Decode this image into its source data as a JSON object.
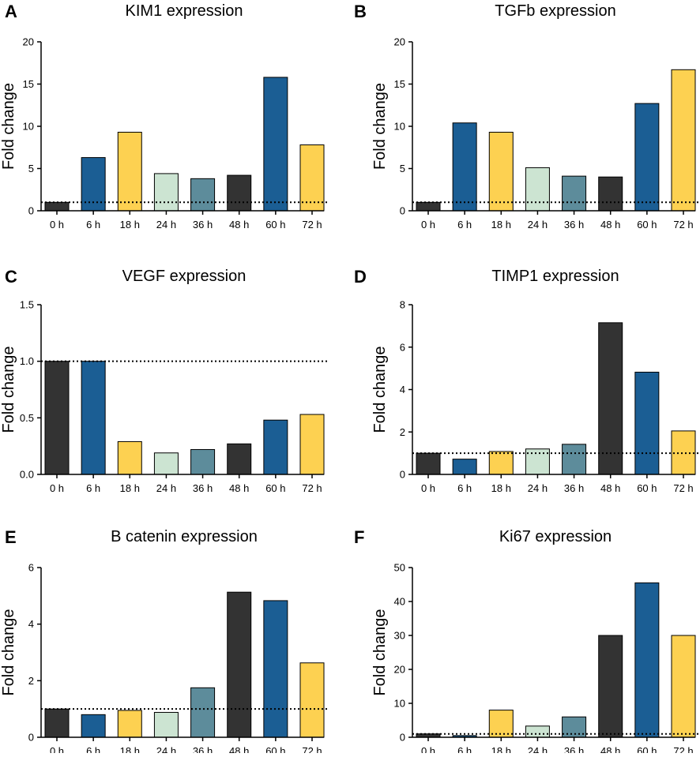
{
  "figure": {
    "default_ylabel": "Fold  change",
    "reference_line_value": 1,
    "colors": {
      "black": "#333333",
      "blue": "#1b5e94",
      "yellow": "#fdd151",
      "mint": "#cce4d2",
      "steel": "#5d8c9b"
    },
    "bar_colors": [
      "#333333",
      "#1b5e94",
      "#fdd151",
      "#cce4d2",
      "#5d8c9b",
      "#333333",
      "#1b5e94",
      "#fdd151"
    ]
  },
  "chart_data": [
    {
      "panel": "A",
      "type": "bar",
      "title": "KIM1 expression",
      "xlabel": "",
      "ylabel": "Fold  change",
      "categories": [
        "0 h",
        "6 h",
        "18 h",
        "24 h",
        "36 h",
        "48 h",
        "60 h",
        "72 h"
      ],
      "values": [
        1.0,
        6.3,
        9.3,
        4.4,
        3.8,
        4.2,
        15.8,
        7.8
      ],
      "ylim": [
        0,
        20
      ],
      "yticks": [
        0,
        5,
        10,
        15,
        20
      ],
      "ytick_labels": [
        "0",
        "5",
        "10",
        "15",
        "20"
      ],
      "reference_line": 1
    },
    {
      "panel": "B",
      "type": "bar",
      "title": "TGFb expression",
      "xlabel": "",
      "ylabel": "Fold  change",
      "categories": [
        "0 h",
        "6 h",
        "18 h",
        "24 h",
        "36 h",
        "48 h",
        "60 h",
        "72 h"
      ],
      "values": [
        1.0,
        10.4,
        9.3,
        5.1,
        4.1,
        4.0,
        12.7,
        16.7
      ],
      "ylim": [
        0,
        20
      ],
      "yticks": [
        0,
        5,
        10,
        15,
        20
      ],
      "ytick_labels": [
        "0",
        "5",
        "10",
        "15",
        "20"
      ],
      "reference_line": 1
    },
    {
      "panel": "C",
      "type": "bar",
      "title": "VEGF expression",
      "xlabel": "",
      "ylabel": "Fold  change",
      "categories": [
        "0 h",
        "6 h",
        "18 h",
        "24 h",
        "36 h",
        "48 h",
        "60 h",
        "72 h"
      ],
      "values": [
        1.0,
        1.0,
        0.29,
        0.19,
        0.22,
        0.27,
        0.48,
        0.53
      ],
      "ylim": [
        0,
        1.5
      ],
      "yticks": [
        0,
        0.5,
        1.0,
        1.5
      ],
      "ytick_labels": [
        "0.0",
        "0.5",
        "1.0",
        "1.5"
      ],
      "reference_line": 1
    },
    {
      "panel": "D",
      "type": "bar",
      "title": "TIMP1 expression",
      "xlabel": "",
      "ylabel": "Fold  change",
      "categories": [
        "0 h",
        "6 h",
        "18 h",
        "24 h",
        "36 h",
        "48 h",
        "60 h",
        "72 h"
      ],
      "values": [
        1.0,
        0.72,
        1.08,
        1.2,
        1.42,
        7.15,
        4.82,
        2.05
      ],
      "ylim": [
        0,
        8
      ],
      "yticks": [
        0,
        2,
        4,
        6,
        8
      ],
      "ytick_labels": [
        "0",
        "2",
        "4",
        "6",
        "8"
      ],
      "reference_line": 1
    },
    {
      "panel": "E",
      "type": "bar",
      "title": "B catenin expression",
      "xlabel": "",
      "ylabel": "Fold  change",
      "categories": [
        "0 h",
        "6 h",
        "18 h",
        "24 h",
        "36 h",
        "48 h",
        "60 h",
        "72 h"
      ],
      "values": [
        1.0,
        0.8,
        0.95,
        0.88,
        1.75,
        5.13,
        4.83,
        2.63
      ],
      "ylim": [
        0,
        6
      ],
      "yticks": [
        0,
        2,
        4,
        6
      ],
      "ytick_labels": [
        "0",
        "2",
        "4",
        "6"
      ],
      "reference_line": 1
    },
    {
      "panel": "F",
      "type": "bar",
      "title": "Ki67 expression",
      "xlabel": "",
      "ylabel": "Fold  change",
      "categories": [
        "0 h",
        "6 h",
        "18 h",
        "24 h",
        "36 h",
        "48 h",
        "60 h",
        "72 h"
      ],
      "values": [
        1.0,
        0.5,
        8.0,
        3.3,
        6.0,
        30.0,
        45.5,
        30.0
      ],
      "ylim": [
        0,
        50
      ],
      "yticks": [
        0,
        10,
        20,
        30,
        40,
        50
      ],
      "ytick_labels": [
        "0",
        "10",
        "20",
        "30",
        "40",
        "50"
      ],
      "reference_line": 1
    }
  ]
}
